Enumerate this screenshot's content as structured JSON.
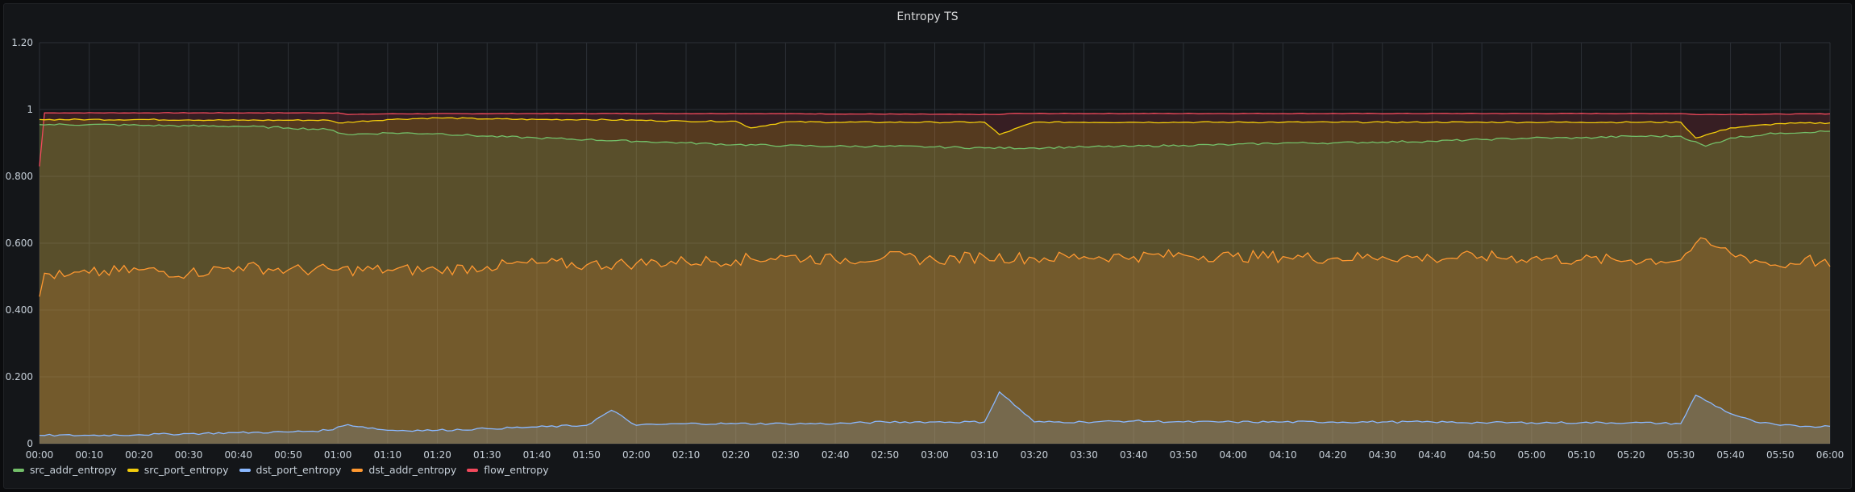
{
  "panel": {
    "title": "Entropy TS"
  },
  "chart_data": {
    "type": "area",
    "title": "Entropy TS",
    "ylim": [
      0,
      1.2
    ],
    "y_ticks": [
      "0",
      "0.200",
      "0.400",
      "0.600",
      "0.800",
      "1",
      "1.20"
    ],
    "x_ticks": [
      "00:00",
      "00:10",
      "00:20",
      "00:30",
      "00:40",
      "00:50",
      "01:00",
      "01:10",
      "01:20",
      "01:30",
      "01:40",
      "01:50",
      "02:00",
      "02:10",
      "02:20",
      "02:30",
      "02:40",
      "02:50",
      "03:00",
      "03:10",
      "03:20",
      "03:30",
      "03:40",
      "03:50",
      "04:00",
      "04:10",
      "04:20",
      "04:30",
      "04:40",
      "04:50",
      "05:00",
      "05:10",
      "05:20",
      "05:30",
      "05:40",
      "05:50",
      "06:00"
    ],
    "x_range_minutes": [
      0,
      360
    ],
    "grid": true,
    "legend_position": "bottom-left",
    "series": [
      {
        "name": "src_addr_entropy",
        "color": "#73bf69",
        "x": [
          0,
          10,
          20,
          30,
          40,
          50,
          58,
          62,
          70,
          80,
          90,
          100,
          110,
          120,
          130,
          140,
          150,
          160,
          170,
          180,
          190,
          200,
          210,
          220,
          230,
          240,
          250,
          260,
          270,
          280,
          290,
          300,
          310,
          320,
          330,
          335,
          340,
          350,
          360
        ],
        "values": [
          0.955,
          0.955,
          0.953,
          0.951,
          0.95,
          0.945,
          0.94,
          0.925,
          0.93,
          0.928,
          0.92,
          0.915,
          0.91,
          0.905,
          0.9,
          0.895,
          0.892,
          0.89,
          0.89,
          0.888,
          0.885,
          0.885,
          0.888,
          0.89,
          0.893,
          0.895,
          0.9,
          0.9,
          0.903,
          0.905,
          0.91,
          0.915,
          0.915,
          0.92,
          0.92,
          0.89,
          0.915,
          0.93,
          0.935
        ]
      },
      {
        "name": "src_port_entropy",
        "color": "#f2cc0c",
        "x": [
          0,
          10,
          20,
          30,
          40,
          50,
          58,
          60,
          70,
          80,
          90,
          100,
          110,
          120,
          130,
          140,
          143,
          150,
          160,
          170,
          180,
          190,
          193,
          200,
          210,
          220,
          230,
          240,
          250,
          260,
          270,
          280,
          290,
          300,
          310,
          320,
          330,
          333,
          340,
          350,
          360
        ],
        "values": [
          0.97,
          0.97,
          0.97,
          0.969,
          0.968,
          0.968,
          0.968,
          0.96,
          0.97,
          0.975,
          0.972,
          0.97,
          0.97,
          0.968,
          0.965,
          0.965,
          0.945,
          0.963,
          0.962,
          0.962,
          0.962,
          0.962,
          0.925,
          0.962,
          0.962,
          0.962,
          0.962,
          0.962,
          0.962,
          0.962,
          0.962,
          0.962,
          0.962,
          0.962,
          0.962,
          0.962,
          0.962,
          0.915,
          0.945,
          0.958,
          0.96
        ]
      },
      {
        "name": "dst_port_entropy",
        "color": "#8ab8ff",
        "x": [
          0,
          10,
          20,
          30,
          40,
          50,
          58,
          62,
          70,
          80,
          90,
          100,
          110,
          115,
          120,
          130,
          140,
          150,
          160,
          170,
          180,
          190,
          193,
          200,
          210,
          220,
          230,
          240,
          250,
          260,
          270,
          280,
          290,
          300,
          310,
          320,
          330,
          333,
          340,
          345,
          350,
          355,
          360
        ],
        "values": [
          0.025,
          0.025,
          0.027,
          0.03,
          0.033,
          0.035,
          0.04,
          0.057,
          0.04,
          0.04,
          0.045,
          0.05,
          0.055,
          0.1,
          0.055,
          0.06,
          0.06,
          0.06,
          0.06,
          0.065,
          0.065,
          0.065,
          0.155,
          0.065,
          0.065,
          0.068,
          0.065,
          0.065,
          0.065,
          0.065,
          0.065,
          0.065,
          0.063,
          0.063,
          0.063,
          0.063,
          0.06,
          0.145,
          0.09,
          0.065,
          0.055,
          0.052,
          0.052
        ]
      },
      {
        "name": "dst_addr_entropy",
        "color": "#ff9830",
        "x": [
          0,
          1,
          5,
          10,
          20,
          30,
          40,
          50,
          60,
          70,
          80,
          90,
          100,
          110,
          120,
          130,
          140,
          150,
          160,
          170,
          180,
          190,
          200,
          210,
          220,
          230,
          240,
          250,
          260,
          270,
          280,
          290,
          300,
          310,
          320,
          330,
          333,
          336,
          340,
          345,
          350,
          355,
          360
        ],
        "values": [
          0.44,
          0.51,
          0.5,
          0.51,
          0.52,
          0.51,
          0.53,
          0.52,
          0.52,
          0.52,
          0.52,
          0.53,
          0.54,
          0.535,
          0.54,
          0.545,
          0.55,
          0.56,
          0.55,
          0.56,
          0.55,
          0.56,
          0.555,
          0.56,
          0.56,
          0.565,
          0.56,
          0.56,
          0.555,
          0.56,
          0.555,
          0.56,
          0.555,
          0.55,
          0.55,
          0.55,
          0.6,
          0.595,
          0.57,
          0.55,
          0.53,
          0.555,
          0.53
        ]
      },
      {
        "name": "flow_entropy",
        "color": "#f2495c",
        "x": [
          0,
          1,
          5,
          60,
          62,
          70,
          100,
          140,
          193,
          195,
          200,
          250,
          300,
          330,
          333,
          360
        ],
        "values": [
          0.83,
          0.99,
          0.99,
          0.99,
          0.985,
          0.987,
          0.988,
          0.988,
          0.985,
          0.988,
          0.988,
          0.988,
          0.988,
          0.988,
          0.985,
          0.987
        ]
      }
    ]
  }
}
